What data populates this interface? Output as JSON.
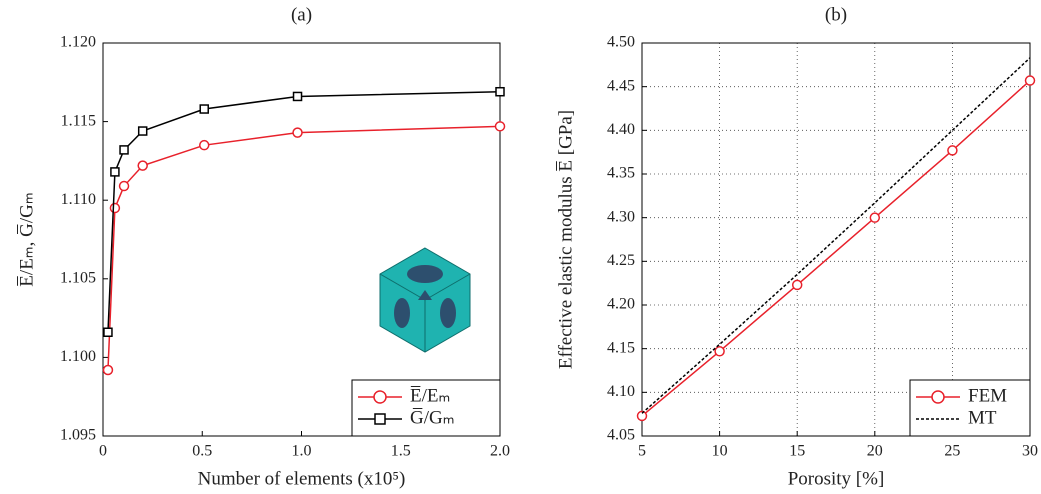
{
  "chart_data": [
    {
      "type": "line",
      "title": "(a)",
      "xlabel": "Number of elements (x10⁵)",
      "ylabel": "E̅/Eₘ, G̅/Gₘ",
      "x": [
        0.025,
        0.06,
        0.106,
        0.2,
        0.51,
        0.98,
        2.0
      ],
      "series": [
        {
          "name": "E̅/Eₘ",
          "color": "#e8212b",
          "marker": "circle",
          "linestyle": "solid",
          "values": [
            1.0992,
            1.1095,
            1.1109,
            1.1122,
            1.1135,
            1.1143,
            1.1147
          ]
        },
        {
          "name": "G̅/Gₘ",
          "color": "#000000",
          "marker": "square",
          "linestyle": "solid",
          "values": [
            1.1016,
            1.1118,
            1.1132,
            1.1144,
            1.1158,
            1.1166,
            1.1169
          ]
        }
      ],
      "xlim": [
        0,
        2.0
      ],
      "xticks": [
        0,
        0.5,
        {
          "value": 1,
          "label": "1.0"
        },
        1.5,
        {
          "value": 2,
          "label": "2.0"
        }
      ],
      "ylim": [
        1.095,
        1.12
      ],
      "yticks": [
        1.095,
        {
          "value": 1.1,
          "label": "1.100"
        },
        1.105,
        {
          "value": 1.11,
          "label": "1.110"
        },
        1.115,
        {
          "value": 1.12,
          "label": "1.120"
        }
      ],
      "grid": false,
      "legend": "lower right"
    },
    {
      "type": "line",
      "title": "(b)",
      "xlabel": "Porosity [%]",
      "ylabel": "Effective elastic modulus E̅ [GPa]",
      "x": [
        5,
        10,
        15,
        20,
        25,
        30
      ],
      "series": [
        {
          "name": "FEM",
          "color": "#e8212b",
          "marker": "circle",
          "linestyle": "solid",
          "values": [
            4.073,
            4.147,
            4.223,
            4.3,
            4.377,
            4.457
          ]
        },
        {
          "name": "MT",
          "color": "#000000",
          "marker": "none",
          "linestyle": "dashed",
          "values": [
            4.076,
            4.155,
            4.235,
            4.317,
            4.4,
            4.483
          ]
        }
      ],
      "xlim": [
        5,
        30
      ],
      "xticks": [
        5,
        10,
        15,
        20,
        25,
        30
      ],
      "ylim": [
        4.05,
        4.5
      ],
      "yticks": [
        4.05,
        {
          "value": 4.1,
          "label": "4.10"
        },
        4.15,
        {
          "value": 4.2,
          "label": "4.20"
        },
        4.25,
        {
          "value": 4.3,
          "label": "4.30"
        },
        4.35,
        {
          "value": 4.4,
          "label": "4.40"
        },
        4.45,
        {
          "value": 4.5,
          "label": "4.50"
        }
      ],
      "grid": true,
      "legend": "lower right"
    }
  ]
}
